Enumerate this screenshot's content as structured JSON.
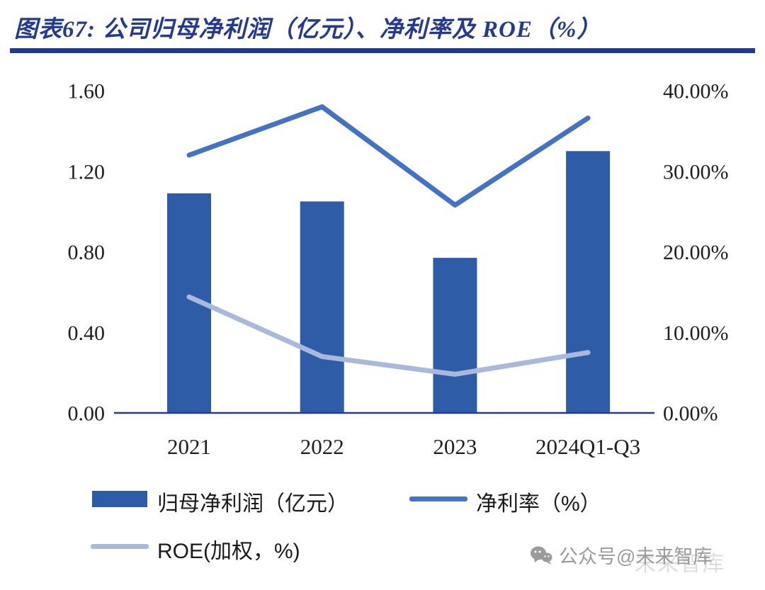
{
  "header": {
    "title": "图表67:  公司归母净利润（亿元）、净利率及 ROE（%）"
  },
  "chart_data": {
    "type": "combo-bar-line",
    "categories": [
      "2021",
      "2022",
      "2023",
      "2024Q1-Q3"
    ],
    "bar_series": {
      "name": "归母净利润（亿元）",
      "axis": "left",
      "color": "#2E5CA6",
      "values": [
        1.09,
        1.05,
        0.77,
        1.3
      ]
    },
    "line_series": [
      {
        "name": "净利率（%）",
        "axis": "right",
        "color": "#4472C4",
        "values": [
          32.0,
          38.0,
          25.8,
          36.6
        ]
      },
      {
        "name": "ROE(加权，%)",
        "axis": "right",
        "color": "#A8B9DB",
        "values": [
          14.4,
          7.0,
          4.8,
          7.5
        ]
      }
    ],
    "left_axis": {
      "min": 0,
      "max": 1.6,
      "ticks": [
        "0.00",
        "0.40",
        "0.80",
        "1.20",
        "1.60"
      ],
      "tick_values": [
        0,
        0.4,
        0.8,
        1.2,
        1.6
      ]
    },
    "right_axis": {
      "min": 0,
      "max": 40,
      "ticks": [
        "0.00%",
        "10.00%",
        "20.00%",
        "30.00%",
        "40.00%"
      ],
      "tick_values": [
        0,
        10,
        20,
        30,
        40
      ]
    },
    "grid": false,
    "legend_position": "bottom"
  },
  "legend": {
    "items": [
      {
        "label": "归母净利润（亿元）",
        "type": "bar",
        "color": "#2E5CA6"
      },
      {
        "label": "净利率（%）",
        "type": "line",
        "color": "#4472C4"
      },
      {
        "label": "ROE(加权，%)",
        "type": "line",
        "color": "#A8B9DB"
      }
    ]
  },
  "watermark": {
    "text": "公众号@未来智库",
    "ghost": "未来智库"
  },
  "colors": {
    "title": "#233A8F",
    "axis_line": "#233A8F",
    "axis_text": "#1f1f1f",
    "watermark": "#9b9b9b"
  }
}
